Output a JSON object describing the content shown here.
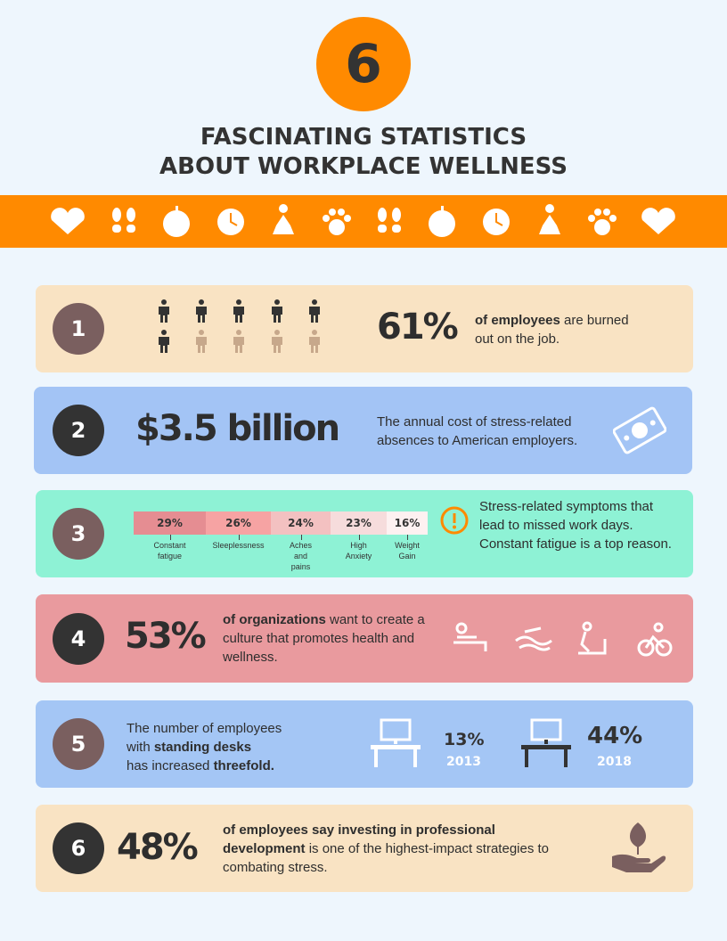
{
  "header": {
    "number": "6",
    "title_line1": "FASCINATING STATISTICS",
    "title_line2": "ABOUT WORKPLACE WELLNESS"
  },
  "stats": [
    {
      "number": "1",
      "figure": "61%",
      "text_bold": "of employees",
      "text": " are burned out on the job."
    },
    {
      "number": "2",
      "figure": "$3.5 billion",
      "text": "The annual cost of stress-related absences to American employers."
    },
    {
      "number": "3",
      "symptoms": [
        {
          "value": "29%",
          "label": "Constant fatigue"
        },
        {
          "value": "26%",
          "label": "Sleeplessness"
        },
        {
          "value": "24%",
          "label": "Aches and pains"
        },
        {
          "value": "23%",
          "label": "High Anxiety"
        },
        {
          "value": "16%",
          "label": "Weight Gain"
        }
      ],
      "text": "Stress-related symptoms that lead to missed work days. Constant fatigue is a top reason."
    },
    {
      "number": "4",
      "figure": "53%",
      "text_bold": "of organizations",
      "text": " want to create a culture that promotes health and wellness."
    },
    {
      "number": "5",
      "text_parts": [
        "The number of employees ",
        "with ",
        "standing desks",
        "has increased ",
        "threefold."
      ],
      "years": [
        {
          "value": "13%",
          "year": "2013"
        },
        {
          "value": "44%",
          "year": "2018"
        }
      ]
    },
    {
      "number": "6",
      "figure": "48%",
      "text_bold": "of employees say investing in professional development",
      "text": " is one of the highest-impact strategies to combating stress."
    }
  ]
}
